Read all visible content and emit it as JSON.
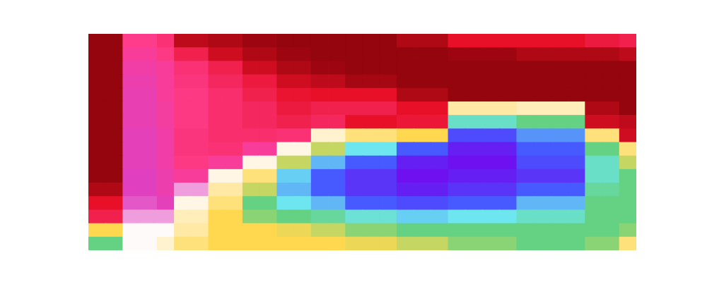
{
  "chart_data": {
    "type": "heatmap",
    "tick_labels": false,
    "xlim": [
      0,
      32
    ],
    "ylim": [
      0,
      16
    ],
    "zlim": [
      0,
      1
    ],
    "cells": [
      [
        0.05,
        0.05,
        0.28,
        0.28,
        0.25,
        0.1,
        0.1,
        0.08,
        0.08,
        0.06,
        0.06,
        0.05,
        0.05,
        0.05,
        0.05,
        0.05,
        0.05,
        0.05,
        0.08,
        0.08,
        0.08,
        0.15,
        0.15,
        0.15,
        0.15,
        0.15,
        0.15,
        0.15,
        0.15,
        0.18,
        0.18,
        0.2
      ],
      [
        0.05,
        0.05,
        0.3,
        0.3,
        0.27,
        0.2,
        0.2,
        0.12,
        0.12,
        0.08,
        0.08,
        0.06,
        0.06,
        0.05,
        0.05,
        0.05,
        0.05,
        0.05,
        0.05,
        0.05,
        0.05,
        0.06,
        0.06,
        0.06,
        0.06,
        0.08,
        0.08,
        0.08,
        0.08,
        0.08,
        0.08,
        0.1
      ],
      [
        0.05,
        0.05,
        0.32,
        0.32,
        0.3,
        0.25,
        0.25,
        0.2,
        0.2,
        0.12,
        0.12,
        0.08,
        0.08,
        0.06,
        0.06,
        0.05,
        0.05,
        0.05,
        0.05,
        0.05,
        0.05,
        0.05,
        0.05,
        0.05,
        0.05,
        0.05,
        0.05,
        0.05,
        0.05,
        0.05,
        0.05,
        0.05
      ],
      [
        0.05,
        0.05,
        0.33,
        0.33,
        0.3,
        0.26,
        0.26,
        0.22,
        0.22,
        0.18,
        0.18,
        0.12,
        0.12,
        0.1,
        0.1,
        0.07,
        0.07,
        0.07,
        0.05,
        0.05,
        0.05,
        0.05,
        0.05,
        0.05,
        0.05,
        0.05,
        0.05,
        0.05,
        0.05,
        0.05,
        0.05,
        0.05
      ],
      [
        0.05,
        0.05,
        0.34,
        0.34,
        0.3,
        0.27,
        0.27,
        0.24,
        0.24,
        0.2,
        0.2,
        0.16,
        0.16,
        0.15,
        0.15,
        0.15,
        0.15,
        0.15,
        0.08,
        0.08,
        0.08,
        0.05,
        0.05,
        0.05,
        0.05,
        0.05,
        0.05,
        0.05,
        0.05,
        0.05,
        0.05,
        0.05
      ],
      [
        0.05,
        0.05,
        0.34,
        0.34,
        0.31,
        0.27,
        0.27,
        0.24,
        0.24,
        0.22,
        0.22,
        0.18,
        0.18,
        0.2,
        0.2,
        0.2,
        0.2,
        0.2,
        0.15,
        0.15,
        0.15,
        0.48,
        0.48,
        0.48,
        0.48,
        0.47,
        0.47,
        0.47,
        0.47,
        0.08,
        0.08,
        0.05
      ],
      [
        0.05,
        0.05,
        0.34,
        0.34,
        0.31,
        0.27,
        0.27,
        0.24,
        0.24,
        0.22,
        0.22,
        0.2,
        0.2,
        0.22,
        0.22,
        0.15,
        0.15,
        0.15,
        0.17,
        0.17,
        0.17,
        0.65,
        0.65,
        0.65,
        0.65,
        0.6,
        0.6,
        0.6,
        0.6,
        0.12,
        0.12,
        0.1
      ],
      [
        0.05,
        0.05,
        0.35,
        0.35,
        0.32,
        0.26,
        0.26,
        0.24,
        0.24,
        0.24,
        0.24,
        0.25,
        0.25,
        0.46,
        0.46,
        0.5,
        0.5,
        0.5,
        0.52,
        0.52,
        0.52,
        0.82,
        0.82,
        0.82,
        0.82,
        0.75,
        0.75,
        0.75,
        0.75,
        0.5,
        0.5,
        0.12
      ],
      [
        0.05,
        0.05,
        0.35,
        0.35,
        0.32,
        0.26,
        0.26,
        0.25,
        0.25,
        0.3,
        0.3,
        0.45,
        0.45,
        0.55,
        0.55,
        0.68,
        0.68,
        0.68,
        0.8,
        0.8,
        0.8,
        0.88,
        0.88,
        0.88,
        0.88,
        0.8,
        0.8,
        0.8,
        0.8,
        0.6,
        0.6,
        0.5
      ],
      [
        0.05,
        0.05,
        0.35,
        0.35,
        0.32,
        0.27,
        0.27,
        0.3,
        0.3,
        0.45,
        0.45,
        0.55,
        0.55,
        0.72,
        0.72,
        0.8,
        0.8,
        0.8,
        0.88,
        0.88,
        0.88,
        0.9,
        0.9,
        0.9,
        0.9,
        0.82,
        0.82,
        0.82,
        0.82,
        0.65,
        0.65,
        0.55
      ],
      [
        0.05,
        0.05,
        0.36,
        0.36,
        0.33,
        0.3,
        0.3,
        0.45,
        0.45,
        0.5,
        0.5,
        0.7,
        0.7,
        0.8,
        0.8,
        0.85,
        0.85,
        0.85,
        0.9,
        0.9,
        0.9,
        0.88,
        0.88,
        0.88,
        0.88,
        0.85,
        0.85,
        0.85,
        0.85,
        0.65,
        0.65,
        0.6
      ],
      [
        0.08,
        0.08,
        0.36,
        0.36,
        0.33,
        0.4,
        0.4,
        0.48,
        0.48,
        0.55,
        0.55,
        0.72,
        0.72,
        0.8,
        0.8,
        0.85,
        0.85,
        0.85,
        0.88,
        0.88,
        0.88,
        0.85,
        0.85,
        0.85,
        0.85,
        0.8,
        0.8,
        0.8,
        0.8,
        0.62,
        0.62,
        0.6
      ],
      [
        0.15,
        0.15,
        0.37,
        0.37,
        0.35,
        0.45,
        0.45,
        0.5,
        0.5,
        0.6,
        0.6,
        0.68,
        0.68,
        0.72,
        0.72,
        0.8,
        0.8,
        0.8,
        0.82,
        0.82,
        0.82,
        0.8,
        0.8,
        0.8,
        0.8,
        0.72,
        0.72,
        0.72,
        0.72,
        0.6,
        0.6,
        0.6
      ],
      [
        0.2,
        0.2,
        0.4,
        0.4,
        0.4,
        0.47,
        0.47,
        0.52,
        0.52,
        0.58,
        0.58,
        0.6,
        0.6,
        0.62,
        0.62,
        0.66,
        0.66,
        0.66,
        0.7,
        0.7,
        0.7,
        0.68,
        0.68,
        0.68,
        0.68,
        0.65,
        0.65,
        0.65,
        0.65,
        0.6,
        0.6,
        0.6
      ],
      [
        0.52,
        0.52,
        0.44,
        0.44,
        0.44,
        0.48,
        0.48,
        0.52,
        0.52,
        0.52,
        0.52,
        0.53,
        0.53,
        0.55,
        0.55,
        0.58,
        0.58,
        0.58,
        0.6,
        0.6,
        0.6,
        0.6,
        0.6,
        0.6,
        0.6,
        0.6,
        0.6,
        0.6,
        0.6,
        0.6,
        0.6,
        0.58
      ],
      [
        0.6,
        0.6,
        0.44,
        0.44,
        0.46,
        0.5,
        0.5,
        0.52,
        0.52,
        0.52,
        0.52,
        0.52,
        0.52,
        0.52,
        0.52,
        0.53,
        0.53,
        0.53,
        0.55,
        0.55,
        0.55,
        0.58,
        0.58,
        0.58,
        0.58,
        0.6,
        0.6,
        0.6,
        0.6,
        0.58,
        0.58,
        0.5
      ]
    ]
  }
}
